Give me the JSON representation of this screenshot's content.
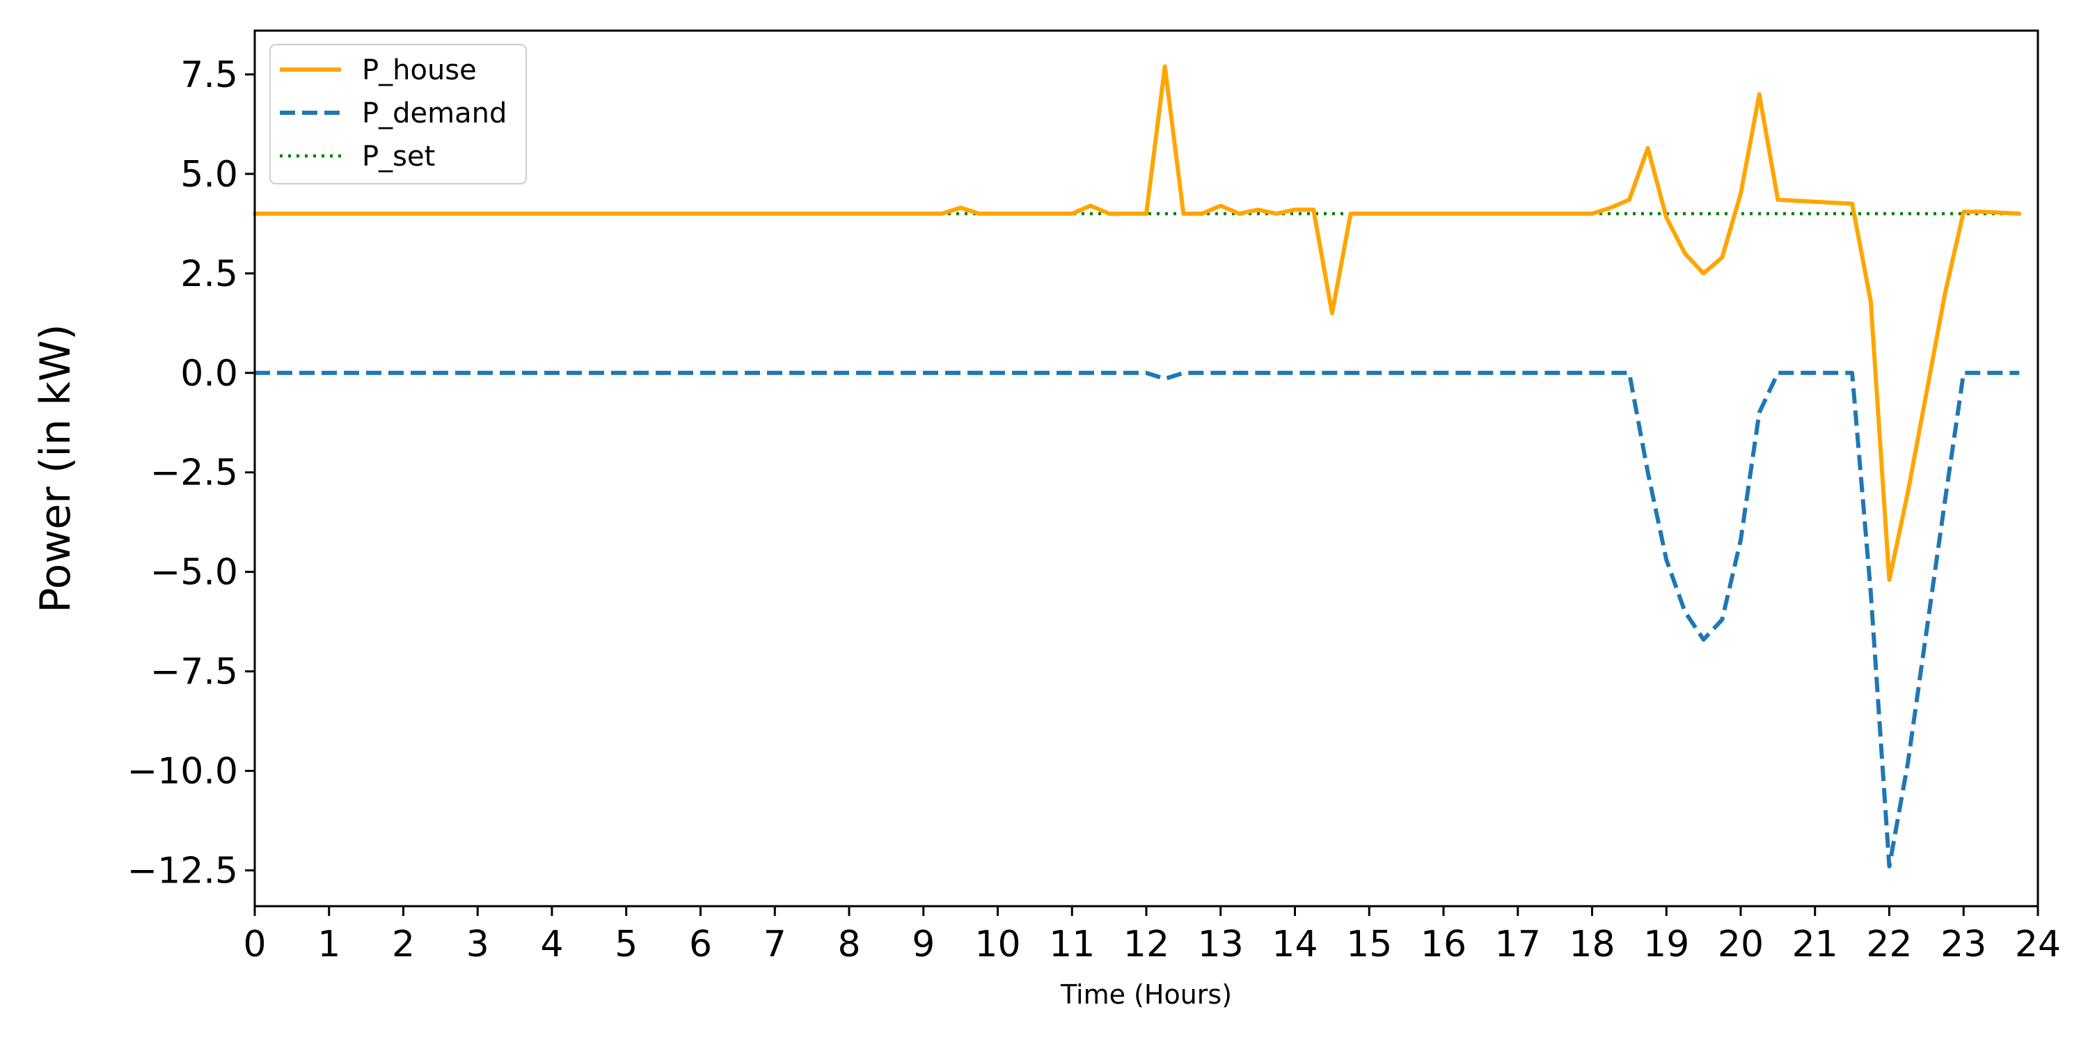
{
  "chart_data": {
    "type": "line",
    "xlabel": "Time (Hours)",
    "ylabel": "Power (in kW)",
    "xlim": [
      0,
      24
    ],
    "ylim": [
      -13.4,
      8.6
    ],
    "xticks": [
      0,
      1,
      2,
      3,
      4,
      5,
      6,
      7,
      8,
      9,
      10,
      11,
      12,
      13,
      14,
      15,
      16,
      17,
      18,
      19,
      20,
      21,
      22,
      23,
      24
    ],
    "yticks": [
      7.5,
      5.0,
      2.5,
      0.0,
      -2.5,
      -5.0,
      -7.5,
      -10.0,
      -12.5
    ],
    "ytick_labels": [
      "7.5",
      "5.0",
      "2.5",
      "0.0",
      "−2.5",
      "−5.0",
      "−7.5",
      "−10.0",
      "−12.5"
    ],
    "grid": false,
    "legend_position": "top-left",
    "series": [
      {
        "name": "P_house",
        "color": "#ffa500",
        "style": "solid",
        "x": [
          0,
          9.25,
          9.5,
          9.75,
          10,
          10.25,
          10.5,
          10.75,
          11,
          11.25,
          11.5,
          11.75,
          12,
          12.25,
          12.5,
          12.75,
          13,
          13.25,
          13.5,
          13.75,
          14,
          14.25,
          14.5,
          14.75,
          15,
          15.25,
          15.5,
          15.75,
          16,
          16.25,
          16.5,
          16.75,
          17,
          17.25,
          17.5,
          17.75,
          18,
          18.25,
          18.5,
          18.75,
          19,
          19.25,
          19.5,
          19.75,
          20,
          20.25,
          20.5,
          21.5,
          21.75,
          22,
          22.25,
          22.5,
          22.75,
          23,
          23.25,
          23.75
        ],
        "y": [
          4.0,
          4.0,
          4.15,
          4.0,
          4.0,
          4.0,
          4.0,
          4.0,
          4.0,
          4.2,
          4.0,
          4.0,
          4.0,
          7.7,
          4.0,
          4.0,
          4.2,
          4.0,
          4.1,
          4.0,
          4.1,
          4.1,
          1.5,
          4.0,
          4.0,
          4.0,
          4.0,
          4.0,
          4.0,
          4.0,
          4.0,
          4.0,
          4.0,
          4.0,
          4.0,
          4.0,
          4.0,
          4.15,
          4.35,
          5.65,
          3.9,
          3.0,
          2.5,
          2.9,
          4.5,
          7.0,
          4.35,
          4.25,
          1.8,
          -5.2,
          -3.0,
          -0.5,
          2.0,
          4.05,
          4.05,
          4.0
        ]
      },
      {
        "name": "P_demand",
        "color": "#1f77b4",
        "style": "dashed",
        "x": [
          0,
          12,
          12.25,
          12.5,
          18.5,
          18.75,
          19,
          19.25,
          19.5,
          19.75,
          20,
          20.25,
          20.5,
          21.5,
          21.75,
          22,
          22.25,
          22.5,
          22.75,
          23,
          23.75
        ],
        "y": [
          0.0,
          0.0,
          -0.15,
          0.0,
          0.0,
          -2.5,
          -4.7,
          -6.0,
          -6.7,
          -6.2,
          -4.2,
          -1.0,
          0.0,
          0.0,
          -5.5,
          -12.4,
          -9.8,
          -6.5,
          -3.2,
          0.0,
          0.0
        ]
      },
      {
        "name": "P_set",
        "color": "#008000",
        "style": "dotted",
        "x": [
          0,
          23.75
        ],
        "y": [
          4.0,
          4.0
        ]
      }
    ]
  }
}
